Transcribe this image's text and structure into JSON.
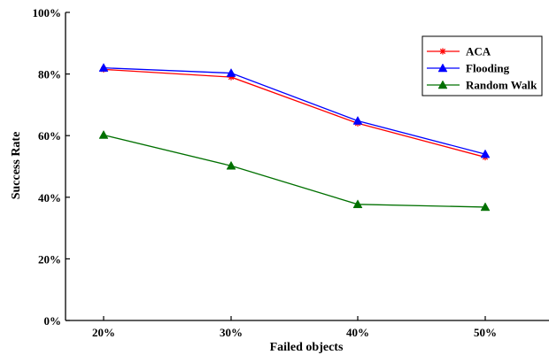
{
  "chart_data": {
    "type": "line",
    "title": "",
    "xlabel": "Failed objects",
    "ylabel": "Success Rate",
    "categories": [
      "20%",
      "30%",
      "40%",
      "50%"
    ],
    "ylim": [
      0,
      100
    ],
    "yticks": [
      0,
      20,
      40,
      60,
      80,
      100
    ],
    "ytick_labels": [
      "0%",
      "20%",
      "40%",
      "60%",
      "80%",
      "100%"
    ],
    "grid": false,
    "legend_position": "top-right",
    "series": [
      {
        "name": "ACA",
        "values": [
          81.5,
          79,
          64,
          53
        ],
        "color": "#ff0000",
        "marker": "star"
      },
      {
        "name": "Flooding",
        "values": [
          82,
          80.3,
          64.8,
          54
        ],
        "color": "#0000ff",
        "marker": "triangle"
      },
      {
        "name": "Random Walk",
        "values": [
          60.2,
          50.2,
          37.7,
          36.8
        ],
        "color": "#007000",
        "marker": "triangle"
      }
    ]
  }
}
